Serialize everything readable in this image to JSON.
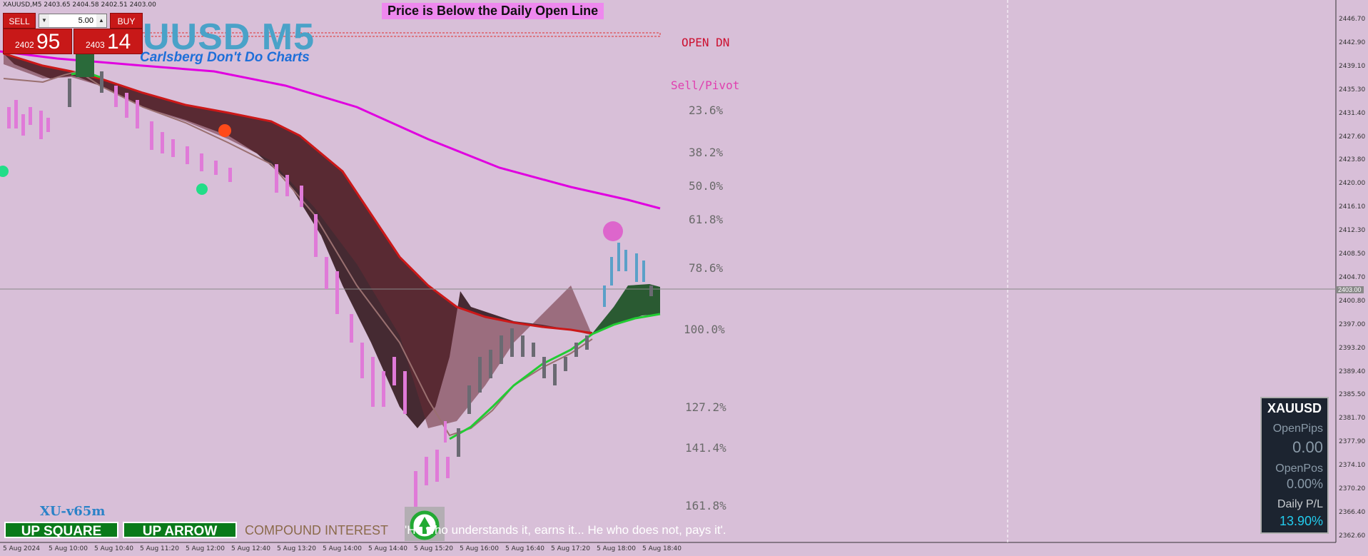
{
  "header": {
    "symbol_info": "XAUUSD,M5  2403.65 2404.58 2402.51 2403.00"
  },
  "one_click": {
    "sell_label": "SELL",
    "buy_label": "BUY",
    "lot": "5.00",
    "sell_small": "2402",
    "sell_big": "95",
    "buy_small": "2403",
    "buy_big": "14"
  },
  "overlay": {
    "title": "UUSD M5",
    "subtitle": "Carlsberg Don't Do Charts",
    "banner": "Price is Below the Daily Open Line",
    "open_dn": "OPEN DN",
    "sell_pivot": "Sell/Pivot",
    "fib_levels": [
      "23.6%",
      "38.2%",
      "50.0%",
      "61.8%",
      "78.6%",
      "100.0%",
      "127.2%",
      "141.4%",
      "161.8%"
    ],
    "version": "XU-v65m",
    "up_square": "UP SQUARE",
    "up_arrow": "UP ARROW",
    "compound": "COMPOUND INTEREST",
    "quote": "'He who understands it, earns it... He who does not, pays it'."
  },
  "panel": {
    "symbol": "XAUUSD",
    "open_pips_label": "OpenPips",
    "open_pips": "0.00",
    "open_pos_label": "OpenPos",
    "open_pos": "0.00%",
    "daily_pl_label": "Daily P/L",
    "daily_pl": "13.90%"
  },
  "price_axis": [
    "2446.70",
    "2442.90",
    "2439.10",
    "2435.30",
    "2431.40",
    "2427.60",
    "2423.80",
    "2420.00",
    "2416.10",
    "2412.30",
    "2408.50",
    "2404.70",
    "2400.80",
    "2397.00",
    "2393.20",
    "2389.40",
    "2385.50",
    "2381.70",
    "2377.90",
    "2374.10",
    "2370.20",
    "2366.40",
    "2362.60"
  ],
  "current_price": "2403.00",
  "time_axis": [
    "5 Aug 2024",
    "5 Aug 10:00",
    "5 Aug 10:40",
    "5 Aug 11:20",
    "5 Aug 12:00",
    "5 Aug 12:40",
    "5 Aug 13:20",
    "5 Aug 14:00",
    "5 Aug 14:40",
    "5 Aug 15:20",
    "5 Aug 16:00",
    "5 Aug 16:40",
    "5 Aug 17:20",
    "5 Aug 18:00",
    "5 Aug 18:40"
  ],
  "colors": {
    "background": "#d8bfd8",
    "band": "#3d2229",
    "ema": "#e000e0",
    "bull_band": "#2a5a32"
  }
}
